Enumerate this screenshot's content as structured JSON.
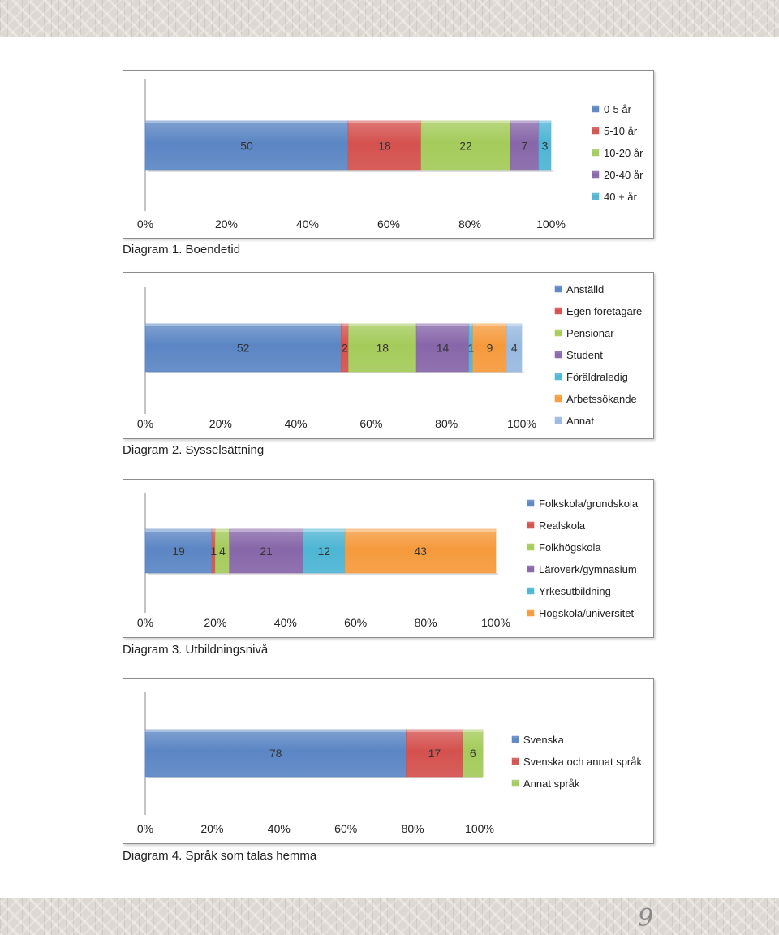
{
  "page_number": "9",
  "colors": {
    "blue": "#5b86c4",
    "red": "#d4514e",
    "green": "#a4cb5a",
    "purple": "#8766a9",
    "cyan": "#4db5d4",
    "orange": "#f59a3c",
    "light_blue": "#98b9e0"
  },
  "chart_data": [
    {
      "type": "bar",
      "orientation": "horizontal-stacked-100",
      "caption": "Diagram 1. Boendetid",
      "x_ticks": [
        "0%",
        "20%",
        "40%",
        "60%",
        "80%",
        "100%"
      ],
      "xlim": [
        0,
        100
      ],
      "legend_position": "right",
      "series": [
        {
          "name": "0-5 år",
          "value": 50,
          "color": "blue"
        },
        {
          "name": "5-10 år",
          "value": 18,
          "color": "red"
        },
        {
          "name": "10-20 år",
          "value": 22,
          "color": "green"
        },
        {
          "name": "20-40 år",
          "value": 7,
          "color": "purple"
        },
        {
          "name": "40 + år",
          "value": 3,
          "color": "cyan"
        }
      ]
    },
    {
      "type": "bar",
      "orientation": "horizontal-stacked-100",
      "caption": "Diagram 2. Sysselsättning",
      "x_ticks": [
        "0%",
        "20%",
        "40%",
        "60%",
        "80%",
        "100%"
      ],
      "xlim": [
        0,
        100
      ],
      "legend_position": "right",
      "series": [
        {
          "name": "Anställd",
          "value": 52,
          "color": "blue"
        },
        {
          "name": "Egen företagare",
          "value": 2,
          "color": "red"
        },
        {
          "name": "Pensionär",
          "value": 18,
          "color": "green"
        },
        {
          "name": "Student",
          "value": 14,
          "color": "purple"
        },
        {
          "name": "Föräldraledig",
          "value": 1,
          "color": "cyan"
        },
        {
          "name": "Arbetssökande",
          "value": 9,
          "color": "orange"
        },
        {
          "name": "Annat",
          "value": 4,
          "color": "light_blue"
        }
      ]
    },
    {
      "type": "bar",
      "orientation": "horizontal-stacked-100",
      "caption": "Diagram 3. Utbildningsnivå",
      "x_ticks": [
        "0%",
        "20%",
        "40%",
        "60%",
        "80%",
        "100%"
      ],
      "xlim": [
        0,
        100
      ],
      "legend_position": "right",
      "series": [
        {
          "name": "Folkskola/grundskola",
          "value": 19,
          "color": "blue"
        },
        {
          "name": "Realskola",
          "value": 1,
          "color": "red"
        },
        {
          "name": "Folkhögskola",
          "value": 4,
          "color": "green"
        },
        {
          "name": "Läroverk/gymnasium",
          "value": 21,
          "color": "purple"
        },
        {
          "name": "Yrkesutbildning",
          "value": 12,
          "color": "cyan"
        },
        {
          "name": "Högskola/universitet",
          "value": 43,
          "color": "orange"
        }
      ]
    },
    {
      "type": "bar",
      "orientation": "horizontal-stacked-100",
      "caption": "Diagram 4. Språk som talas hemma",
      "x_ticks": [
        "0%",
        "20%",
        "40%",
        "60%",
        "80%",
        "100%"
      ],
      "xlim": [
        0,
        100
      ],
      "legend_position": "right",
      "series": [
        {
          "name": "Svenska",
          "value": 78,
          "color": "blue"
        },
        {
          "name": "Svenska och annat språk",
          "value": 17,
          "color": "red"
        },
        {
          "name": "Annat språk",
          "value": 6,
          "color": "green"
        }
      ]
    }
  ]
}
